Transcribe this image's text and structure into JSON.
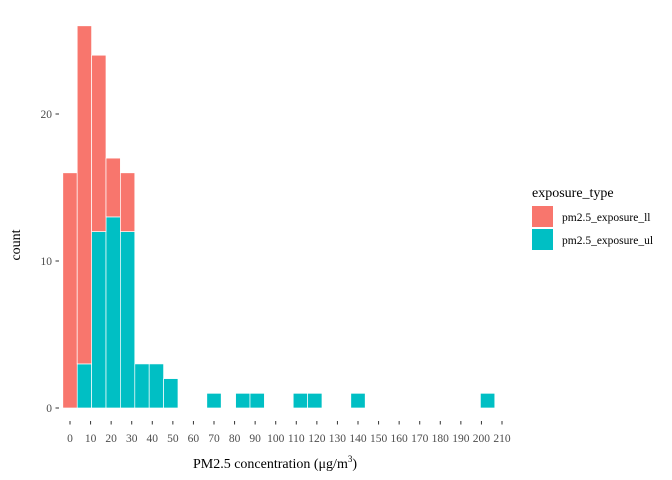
{
  "chart_data": {
    "type": "bar",
    "stacked": true,
    "binwidth": 7,
    "xlabel_main": "PM2.5 concentration (μg/m",
    "xlabel_sup": "3",
    "xlabel_close": ")",
    "ylabel": "count",
    "x_ticks": [
      0,
      10,
      20,
      30,
      40,
      50,
      60,
      70,
      80,
      90,
      100,
      110,
      120,
      130,
      140,
      150,
      160,
      170,
      180,
      190,
      200,
      210
    ],
    "y_ticks": [
      0,
      10,
      20
    ],
    "ylim": [
      0,
      27
    ],
    "xlim": [
      -3.5,
      211
    ],
    "grid": false,
    "legend_position": "right",
    "legend": {
      "title": "exposure_type",
      "items": [
        {
          "label": "pm2.5_exposure_ll",
          "color": "#F8766D"
        },
        {
          "label": "pm2.5_exposure_ul",
          "color": "#00BFC4"
        }
      ]
    },
    "series": [
      {
        "name": "pm2.5_exposure_ll",
        "color": "#F8766D",
        "bins": [
          {
            "x": 0,
            "count": 16
          },
          {
            "x": 7,
            "count": 23
          },
          {
            "x": 14,
            "count": 12
          },
          {
            "x": 21,
            "count": 4
          },
          {
            "x": 28,
            "count": 4
          }
        ]
      },
      {
        "name": "pm2.5_exposure_ul",
        "color": "#00BFC4",
        "bins": [
          {
            "x": 7,
            "count": 3
          },
          {
            "x": 14,
            "count": 12
          },
          {
            "x": 21,
            "count": 13
          },
          {
            "x": 28,
            "count": 12
          },
          {
            "x": 35,
            "count": 3
          },
          {
            "x": 42,
            "count": 3
          },
          {
            "x": 49,
            "count": 2
          },
          {
            "x": 70,
            "count": 1
          },
          {
            "x": 84,
            "count": 1
          },
          {
            "x": 91,
            "count": 1
          },
          {
            "x": 112,
            "count": 1
          },
          {
            "x": 119,
            "count": 1
          },
          {
            "x": 140,
            "count": 1
          },
          {
            "x": 203,
            "count": 1
          }
        ]
      }
    ]
  }
}
